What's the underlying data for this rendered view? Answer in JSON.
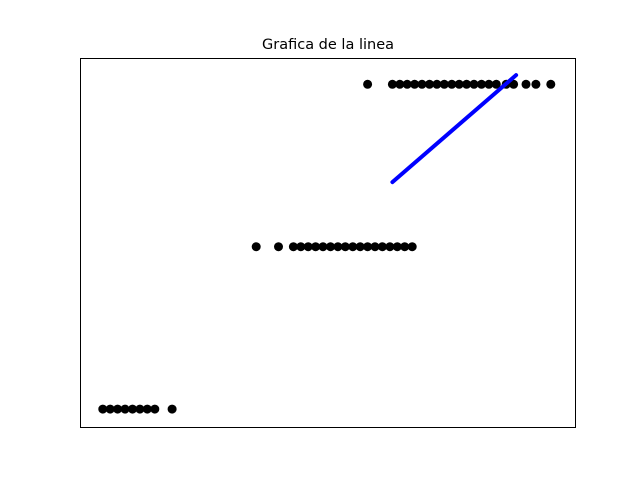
{
  "chart_data": {
    "type": "scatter",
    "title": "Grafica de la linea",
    "xlabel": "",
    "ylabel": "",
    "xlim": [
      0,
      100
    ],
    "ylim": [
      0,
      100
    ],
    "grid": false,
    "axis_ticks": false,
    "point_color": "#000000",
    "line_color": "#0000ff",
    "series": [
      {
        "type": "scatter",
        "points": [
          [
            4.5,
            5
          ],
          [
            6,
            5
          ],
          [
            7.5,
            5
          ],
          [
            9,
            5
          ],
          [
            10.5,
            5
          ],
          [
            12,
            5
          ],
          [
            13.5,
            5
          ],
          [
            15,
            5
          ],
          [
            18.5,
            5
          ],
          [
            35.5,
            49
          ],
          [
            40,
            49
          ],
          [
            43,
            49
          ],
          [
            44.5,
            49
          ],
          [
            46,
            49
          ],
          [
            47.5,
            49
          ],
          [
            49,
            49
          ],
          [
            50.5,
            49
          ],
          [
            52,
            49
          ],
          [
            53.5,
            49
          ],
          [
            55,
            49
          ],
          [
            56.5,
            49
          ],
          [
            58,
            49
          ],
          [
            59.5,
            49
          ],
          [
            61,
            49
          ],
          [
            62.5,
            49
          ],
          [
            64,
            49
          ],
          [
            65.5,
            49
          ],
          [
            67,
            49
          ],
          [
            58,
            93
          ],
          [
            63,
            93
          ],
          [
            64.5,
            93
          ],
          [
            66,
            93
          ],
          [
            67.5,
            93
          ],
          [
            69,
            93
          ],
          [
            70.5,
            93
          ],
          [
            72,
            93
          ],
          [
            73.5,
            93
          ],
          [
            75,
            93
          ],
          [
            76.5,
            93
          ],
          [
            78,
            93
          ],
          [
            79.5,
            93
          ],
          [
            81,
            93
          ],
          [
            82.5,
            93
          ],
          [
            84,
            93
          ],
          [
            86,
            93
          ],
          [
            87.5,
            93
          ],
          [
            90,
            93
          ],
          [
            92,
            93
          ],
          [
            95,
            93
          ]
        ]
      },
      {
        "type": "line",
        "x": [
          63,
          88
        ],
        "y": [
          66.5,
          95.5
        ]
      }
    ]
  }
}
